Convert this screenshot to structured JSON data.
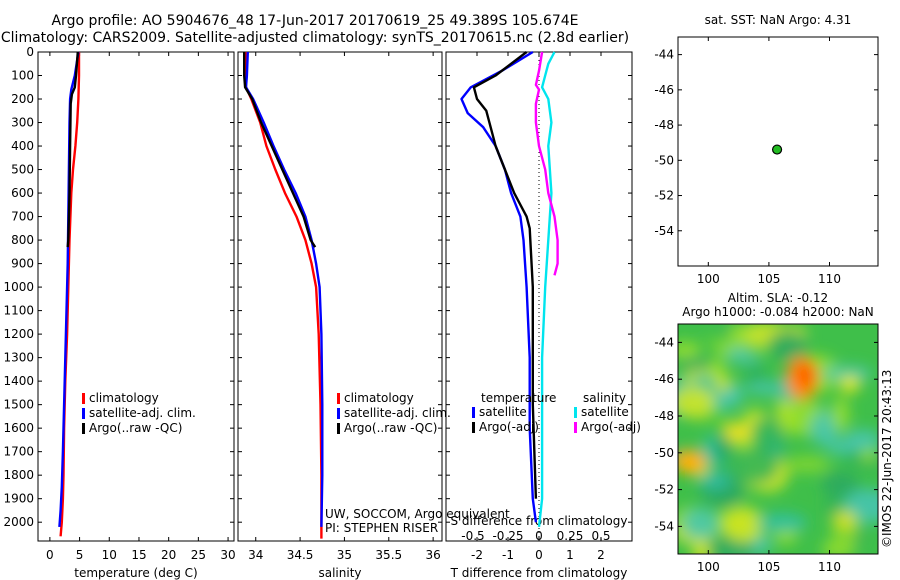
{
  "header": {
    "line1": "Argo profile: AO 5904676_48 17-Jun-2017 20170619_25 49.389S 105.674E",
    "line2": "Climatology: CARS2009. Satellite-adjusted climatology: synTS_20170615.nc (2.8d earlier)"
  },
  "colors": {
    "climatology": "#ff0000",
    "satellite": "#0000ff",
    "argo": "#000000",
    "salinity_satellite": "#00e5ee",
    "salinity_argo": "#ff00ff",
    "float_marker": "#22bb22"
  },
  "chart_data": [
    {
      "id": "temperature",
      "type": "line",
      "xlabel": "temperature (deg C)",
      "xlim": [
        -2,
        31
      ],
      "ylim": [
        2080,
        0
      ],
      "xticks": [
        0,
        5,
        10,
        15,
        20,
        25,
        30
      ],
      "yticks": [
        0,
        100,
        200,
        300,
        400,
        500,
        600,
        700,
        800,
        900,
        1000,
        1100,
        1200,
        1300,
        1400,
        1500,
        1600,
        1700,
        1800,
        1900,
        2000
      ],
      "legend": [
        "climatology",
        "satellite-adj. clim.",
        "Argo(..raw -QC)"
      ],
      "series": [
        {
          "name": "climatology",
          "color": "#ff0000",
          "x": [
            4.9,
            4.9,
            4.8,
            4.6,
            4.3,
            3.9,
            3.6,
            3.3,
            3.1,
            2.9,
            2.6,
            2.4,
            2.3,
            2.2,
            2.0,
            1.8
          ],
          "y": [
            0,
            100,
            200,
            300,
            400,
            500,
            600,
            800,
            1000,
            1200,
            1400,
            1600,
            1800,
            1900,
            2000,
            2060
          ]
        },
        {
          "name": "satellite-adj. clim.",
          "color": "#0000ff",
          "x": [
            4.8,
            4.2,
            3.6,
            3.4,
            3.3,
            3.2,
            3.1,
            3.0,
            2.8,
            2.6,
            2.4,
            2.2,
            2.0,
            1.8,
            1.6
          ],
          "y": [
            0,
            100,
            160,
            200,
            300,
            500,
            700,
            900,
            1100,
            1300,
            1500,
            1700,
            1850,
            1950,
            2020
          ]
        },
        {
          "name": "Argo(..raw -QC)",
          "color": "#000000",
          "x": [
            4.7,
            4.4,
            4.2,
            3.7,
            3.5,
            3.4,
            3.3,
            3.1,
            3.0
          ],
          "y": [
            0,
            100,
            150,
            180,
            220,
            400,
            600,
            800,
            830
          ]
        }
      ]
    },
    {
      "id": "salinity",
      "type": "line",
      "xlabel": "salinity",
      "xlim": [
        33.8,
        36.1
      ],
      "ylim": [
        2080,
        0
      ],
      "xticks": [
        34,
        34.5,
        35,
        35.5,
        36
      ],
      "legend": [
        "climatology",
        "satellite-adj. clim.",
        "Argo(..raw -QC)"
      ],
      "series": [
        {
          "name": "climatology",
          "color": "#ff0000",
          "x": [
            33.89,
            33.88,
            33.89,
            33.95,
            34.05,
            34.12,
            34.22,
            34.33,
            34.46,
            34.56,
            34.63,
            34.68,
            34.71,
            34.73,
            34.74,
            34.74
          ],
          "y": [
            0,
            100,
            150,
            200,
            300,
            400,
            500,
            600,
            700,
            800,
            900,
            1000,
            1200,
            1500,
            1800,
            2070
          ]
        },
        {
          "name": "satellite-adj. clim.",
          "color": "#0000ff",
          "x": [
            33.91,
            33.9,
            33.89,
            33.97,
            34.09,
            34.2,
            34.32,
            34.45,
            34.56,
            34.63,
            34.68,
            34.72,
            34.74,
            34.75,
            34.75,
            34.74
          ],
          "y": [
            0,
            100,
            150,
            200,
            300,
            400,
            500,
            600,
            700,
            800,
            900,
            1000,
            1200,
            1500,
            1800,
            2020
          ]
        },
        {
          "name": "Argo(..raw -QC)",
          "color": "#000000",
          "x": [
            33.87,
            33.87,
            33.88,
            33.96,
            34.06,
            34.18,
            34.3,
            34.42,
            34.54,
            34.62,
            34.67
          ],
          "y": [
            0,
            100,
            150,
            200,
            300,
            400,
            500,
            600,
            700,
            800,
            830
          ]
        }
      ],
      "annotation_lines": [
        "UW, SOCCOM, Argo equivalent",
        "PI: STEPHEN RISER"
      ]
    },
    {
      "id": "difference",
      "type": "line",
      "xlabel": "T difference from climatology",
      "xlabel_top": "S difference from climatology",
      "xlim": [
        -3,
        3
      ],
      "ylim": [
        2080,
        0
      ],
      "xticks": [
        -2,
        -1,
        0,
        1,
        2
      ],
      "xticks_salinity": [
        "-0.5",
        "-0.25",
        "0",
        "0.25",
        "0.5"
      ],
      "legend_temperature": {
        "heading": "temperature",
        "entries": [
          "satellite",
          "Argo(-adj)"
        ]
      },
      "legend_salinity": {
        "heading": "salinity",
        "entries": [
          "satellite",
          "Argo(-adj)"
        ]
      },
      "series": [
        {
          "name": "temperature satellite",
          "color": "#0000ff",
          "x": [
            -0.2,
            -1.2,
            -2.2,
            -2.5,
            -2.3,
            -1.8,
            -1.4,
            -1.1,
            -0.9,
            -0.6,
            -0.5,
            -0.4,
            -0.3,
            -0.3,
            -0.2,
            -0.1
          ],
          "y": [
            0,
            80,
            150,
            200,
            260,
            320,
            400,
            500,
            600,
            700,
            800,
            1000,
            1300,
            1600,
            1900,
            2000
          ]
        },
        {
          "name": "temperature Argo(-adj)",
          "color": "#000000",
          "x": [
            -0.4,
            -1.4,
            -2.1,
            -2.0,
            -1.7,
            -1.6,
            -1.4,
            -1.1,
            -0.8,
            -0.4,
            -0.3,
            -0.2,
            -0.2,
            -0.1
          ],
          "y": [
            0,
            100,
            150,
            200,
            250,
            300,
            400,
            500,
            600,
            700,
            750,
            1000,
            1500,
            1900
          ]
        },
        {
          "name": "salinity satellite",
          "color": "#00e5ee",
          "x": [
            0.5,
            0.3,
            0.2,
            0.1,
            0.3,
            0.4,
            0.3,
            0.4,
            0.3,
            0.2,
            0.1,
            0.1,
            0.1,
            0.0
          ],
          "y": [
            0,
            50,
            100,
            150,
            200,
            300,
            400,
            600,
            800,
            1000,
            1300,
            1600,
            1900,
            2020
          ]
        },
        {
          "name": "salinity Argo(-adj)",
          "color": "#ff00ff",
          "x": [
            0.1,
            0.0,
            -0.1,
            0.0,
            -0.1,
            -0.1,
            0.0,
            0.2,
            0.3,
            0.5,
            0.6,
            0.6,
            0.5
          ],
          "y": [
            0,
            80,
            140,
            160,
            220,
            300,
            400,
            500,
            600,
            700,
            800,
            900,
            950
          ]
        }
      ]
    },
    {
      "id": "location-map",
      "type": "scatter",
      "title": "sat. SST: NaN Argo: 4.31",
      "xlim": [
        97.5,
        114
      ],
      "ylim": [
        -56,
        -43
      ],
      "xticks": [
        100,
        105,
        110
      ],
      "yticks": [
        -44,
        -46,
        -48,
        -50,
        -52,
        -54
      ],
      "points": [
        {
          "lon": 105.674,
          "lat": -49.389
        }
      ]
    },
    {
      "id": "sla-map",
      "type": "heatmap",
      "title_line1": "Altim. SLA: -0.12",
      "title_line2": "Argo h1000: -0.084 h2000: NaN",
      "xlim": [
        97.5,
        114
      ],
      "ylim": [
        -55.5,
        -43
      ],
      "xticks": [
        100,
        105,
        110
      ],
      "yticks": [
        -44,
        -46,
        -48,
        -50,
        -52,
        -54
      ],
      "side_label": "©IMOS 22-Jun-2017 20:43:13"
    }
  ]
}
